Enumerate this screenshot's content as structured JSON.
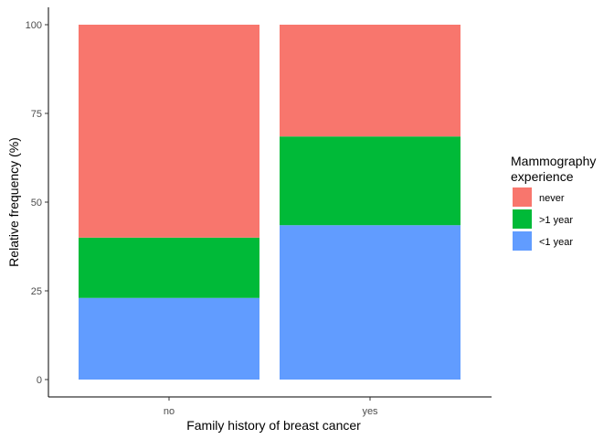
{
  "chart_data": {
    "type": "bar",
    "stacked": true,
    "xlabel": "Family history of breast cancer",
    "ylabel": "Relative frequency (%)",
    "categories": [
      "no",
      "yes"
    ],
    "ylim": [
      0,
      100
    ],
    "yticks": [
      0,
      25,
      50,
      75,
      100
    ],
    "grid": false,
    "legend": {
      "title_lines": [
        "Mammography",
        "experience"
      ],
      "placement": "right"
    },
    "series": [
      {
        "name": "<1 year",
        "color": "#619CFF",
        "values": [
          23,
          43.5
        ]
      },
      {
        "name": ">1 year",
        "color": "#00BA38",
        "values": [
          17,
          25
        ]
      },
      {
        "name": "never",
        "color": "#F8766D",
        "values": [
          60,
          31.5
        ]
      }
    ],
    "legend_order": [
      "never",
      ">1 year",
      "<1 year"
    ]
  }
}
